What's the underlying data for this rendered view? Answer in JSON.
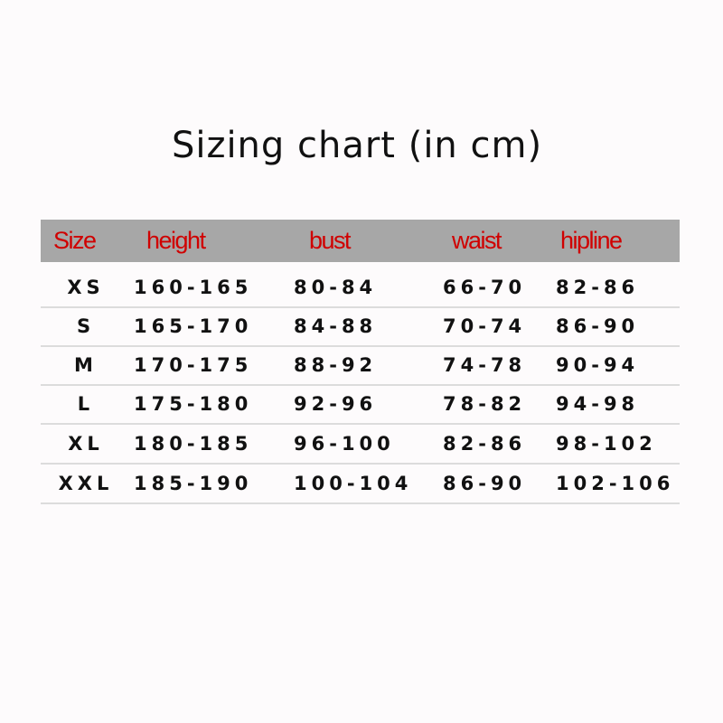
{
  "title": "Sizing chart (in cm)",
  "header_bg": "#a7a7a7",
  "header_color": "#d00000",
  "columns": [
    "Size",
    "height",
    "bust",
    "waist",
    "hipline"
  ],
  "rows": [
    [
      "XS",
      "160-165",
      "80-84",
      "66-70",
      "82-86"
    ],
    [
      "S",
      "165-170",
      "84-88",
      "70-74",
      "86-90"
    ],
    [
      "M",
      "170-175",
      "88-92",
      "74-78",
      "90-94"
    ],
    [
      "L",
      "175-180",
      "92-96",
      "78-82",
      "94-98"
    ],
    [
      "XL",
      "180-185",
      "96-100",
      "82-86",
      "98-102"
    ],
    [
      "XXL",
      "185-190",
      "100-104",
      "86-90",
      "102-106"
    ]
  ]
}
